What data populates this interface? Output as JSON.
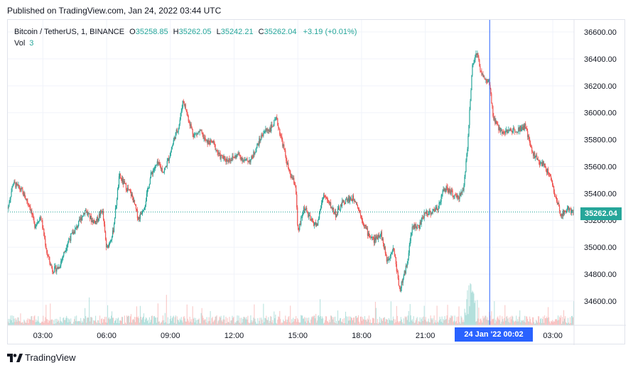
{
  "header": {
    "published": "Published on TradingView.com, Jan 24, 2022 03:44 UTC"
  },
  "legend": {
    "symbol": "Bitcoin / TetherUS, 1, BINANCE",
    "o_label": "O",
    "o": "35258.85",
    "h_label": "H",
    "h": "35262.05",
    "l_label": "L",
    "l": "35242.21",
    "c_label": "C",
    "c": "35262.04",
    "change": "+3.19 (+0.01%)",
    "vol_label": "Vol",
    "vol": "3"
  },
  "price_tag": "35262.04",
  "crosshair_label": "24 Jan '22   00:02",
  "footer": {
    "brand": "TradingView"
  },
  "colors": {
    "up": "#26a69a",
    "down": "#ef5350",
    "crosshair": "#2962ff",
    "grid": "#f0f3fa"
  },
  "chart_data": {
    "type": "candlestick",
    "title": "Bitcoin / TetherUS, 1, BINANCE",
    "y_ticks": [
      34600,
      34800,
      35000,
      35200,
      35400,
      35600,
      35800,
      36000,
      36200,
      36400,
      36600
    ],
    "y_tick_labels": [
      "34600.00",
      "34800.00",
      "35000.00",
      "35200.00",
      "35400.00",
      "35600.00",
      "35800.00",
      "36000.00",
      "36200.00",
      "36400.00",
      "36600.00"
    ],
    "ylim": [
      34420,
      36690
    ],
    "x_tick_labels": [
      "03:00",
      "06:00",
      "09:00",
      "12:00",
      "15:00",
      "18:00",
      "21:00",
      "03:00"
    ],
    "x_tick_hours": [
      3,
      6,
      9,
      12,
      15,
      18,
      21,
      27
    ],
    "xlim_hours": [
      1.35,
      28.0
    ],
    "last_price": 35262.04,
    "crosshair_hour": 24.03,
    "close_path": [
      [
        1.35,
        35290
      ],
      [
        1.6,
        35480
      ],
      [
        2.0,
        35420
      ],
      [
        2.4,
        35300
      ],
      [
        2.6,
        35160
      ],
      [
        2.9,
        35230
      ],
      [
        3.2,
        34950
      ],
      [
        3.45,
        34830
      ],
      [
        3.75,
        34850
      ],
      [
        4.2,
        35050
      ],
      [
        4.6,
        35150
      ],
      [
        5.0,
        35280
      ],
      [
        5.3,
        35200
      ],
      [
        5.5,
        35190
      ],
      [
        5.8,
        35280
      ],
      [
        6.0,
        34980
      ],
      [
        6.3,
        35110
      ],
      [
        6.6,
        35530
      ],
      [
        6.9,
        35450
      ],
      [
        7.2,
        35380
      ],
      [
        7.5,
        35210
      ],
      [
        7.8,
        35320
      ],
      [
        8.1,
        35550
      ],
      [
        8.4,
        35620
      ],
      [
        8.7,
        35560
      ],
      [
        9.0,
        35700
      ],
      [
        9.2,
        35820
      ],
      [
        9.4,
        35900
      ],
      [
        9.6,
        36100
      ],
      [
        9.8,
        35980
      ],
      [
        10.1,
        35830
      ],
      [
        10.4,
        35860
      ],
      [
        10.7,
        35780
      ],
      [
        11.0,
        35780
      ],
      [
        11.3,
        35680
      ],
      [
        11.6,
        35650
      ],
      [
        11.9,
        35660
      ],
      [
        12.2,
        35690
      ],
      [
        12.5,
        35640
      ],
      [
        12.8,
        35650
      ],
      [
        13.1,
        35760
      ],
      [
        13.4,
        35860
      ],
      [
        13.7,
        35880
      ],
      [
        14.0,
        35950
      ],
      [
        14.3,
        35760
      ],
      [
        14.6,
        35550
      ],
      [
        14.9,
        35460
      ],
      [
        15.0,
        35100
      ],
      [
        15.3,
        35300
      ],
      [
        15.6,
        35200
      ],
      [
        15.9,
        35160
      ],
      [
        16.2,
        35390
      ],
      [
        16.5,
        35320
      ],
      [
        16.8,
        35240
      ],
      [
        17.1,
        35330
      ],
      [
        17.4,
        35360
      ],
      [
        17.7,
        35360
      ],
      [
        18.0,
        35220
      ],
      [
        18.3,
        35100
      ],
      [
        18.6,
        35050
      ],
      [
        18.9,
        35110
      ],
      [
        19.2,
        34900
      ],
      [
        19.5,
        35000
      ],
      [
        19.8,
        34680
      ],
      [
        20.1,
        34850
      ],
      [
        20.4,
        35160
      ],
      [
        20.7,
        35150
      ],
      [
        21.0,
        35260
      ],
      [
        21.3,
        35260
      ],
      [
        21.6,
        35300
      ],
      [
        21.9,
        35440
      ],
      [
        22.2,
        35410
      ],
      [
        22.5,
        35360
      ],
      [
        22.8,
        35430
      ],
      [
        23.0,
        35780
      ],
      [
        23.2,
        36320
      ],
      [
        23.4,
        36460
      ],
      [
        23.6,
        36320
      ],
      [
        23.8,
        36240
      ],
      [
        24.0,
        36230
      ],
      [
        24.2,
        35960
      ],
      [
        24.5,
        35870
      ],
      [
        24.8,
        35860
      ],
      [
        25.1,
        35870
      ],
      [
        25.4,
        35880
      ],
      [
        25.7,
        35900
      ],
      [
        26.0,
        35720
      ],
      [
        26.3,
        35640
      ],
      [
        26.6,
        35610
      ],
      [
        26.9,
        35520
      ],
      [
        27.1,
        35380
      ],
      [
        27.4,
        35240
      ],
      [
        27.7,
        35290
      ],
      [
        28.0,
        35262
      ]
    ]
  }
}
